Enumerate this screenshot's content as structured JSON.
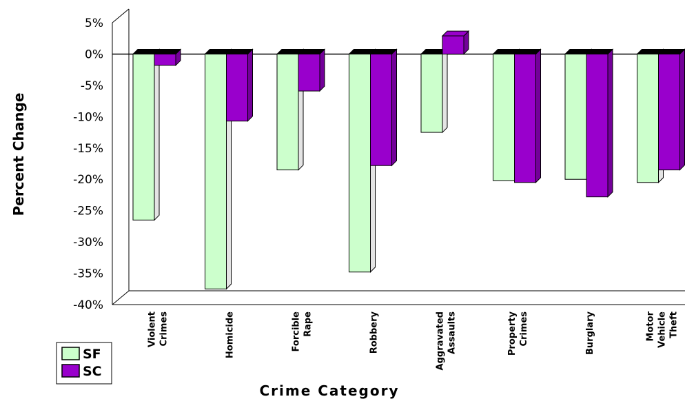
{
  "chart_data": {
    "type": "bar",
    "categories": [
      [
        "Violent",
        "Crimes"
      ],
      [
        "Homicide"
      ],
      [
        "Forcible",
        "Rape"
      ],
      [
        "Robbery"
      ],
      [
        "Aggravated",
        "Assaults"
      ],
      [
        "Property",
        "Crimes"
      ],
      [
        "Burglary"
      ],
      [
        "Motor",
        "Vehicle",
        "Theft"
      ]
    ],
    "series": [
      {
        "name": "SF",
        "color": "#ccffcc",
        "values": [
          -26.5,
          -37.5,
          -18.5,
          -34.8,
          -12.5,
          -20.2,
          -20.0,
          -20.5
        ]
      },
      {
        "name": "SC",
        "color": "#9900cc",
        "values": [
          -1.8,
          -10.7,
          -5.9,
          -17.8,
          2.9,
          -20.5,
          -22.8,
          -18.5
        ]
      }
    ],
    "ylim": [
      -40,
      5
    ],
    "yticks": [
      5,
      0,
      -5,
      -10,
      -15,
      -20,
      -25,
      -30,
      -35,
      -40
    ],
    "ytick_labels": [
      "5%",
      "0%",
      "-5%",
      "-10%",
      "-15%",
      "-20%",
      "-25%",
      "-30%",
      "-35%",
      "-40%"
    ],
    "xlabel": "Crime Category",
    "ylabel": "Percent Change",
    "title": "",
    "grid": false,
    "legend_position": "bottom-left"
  }
}
